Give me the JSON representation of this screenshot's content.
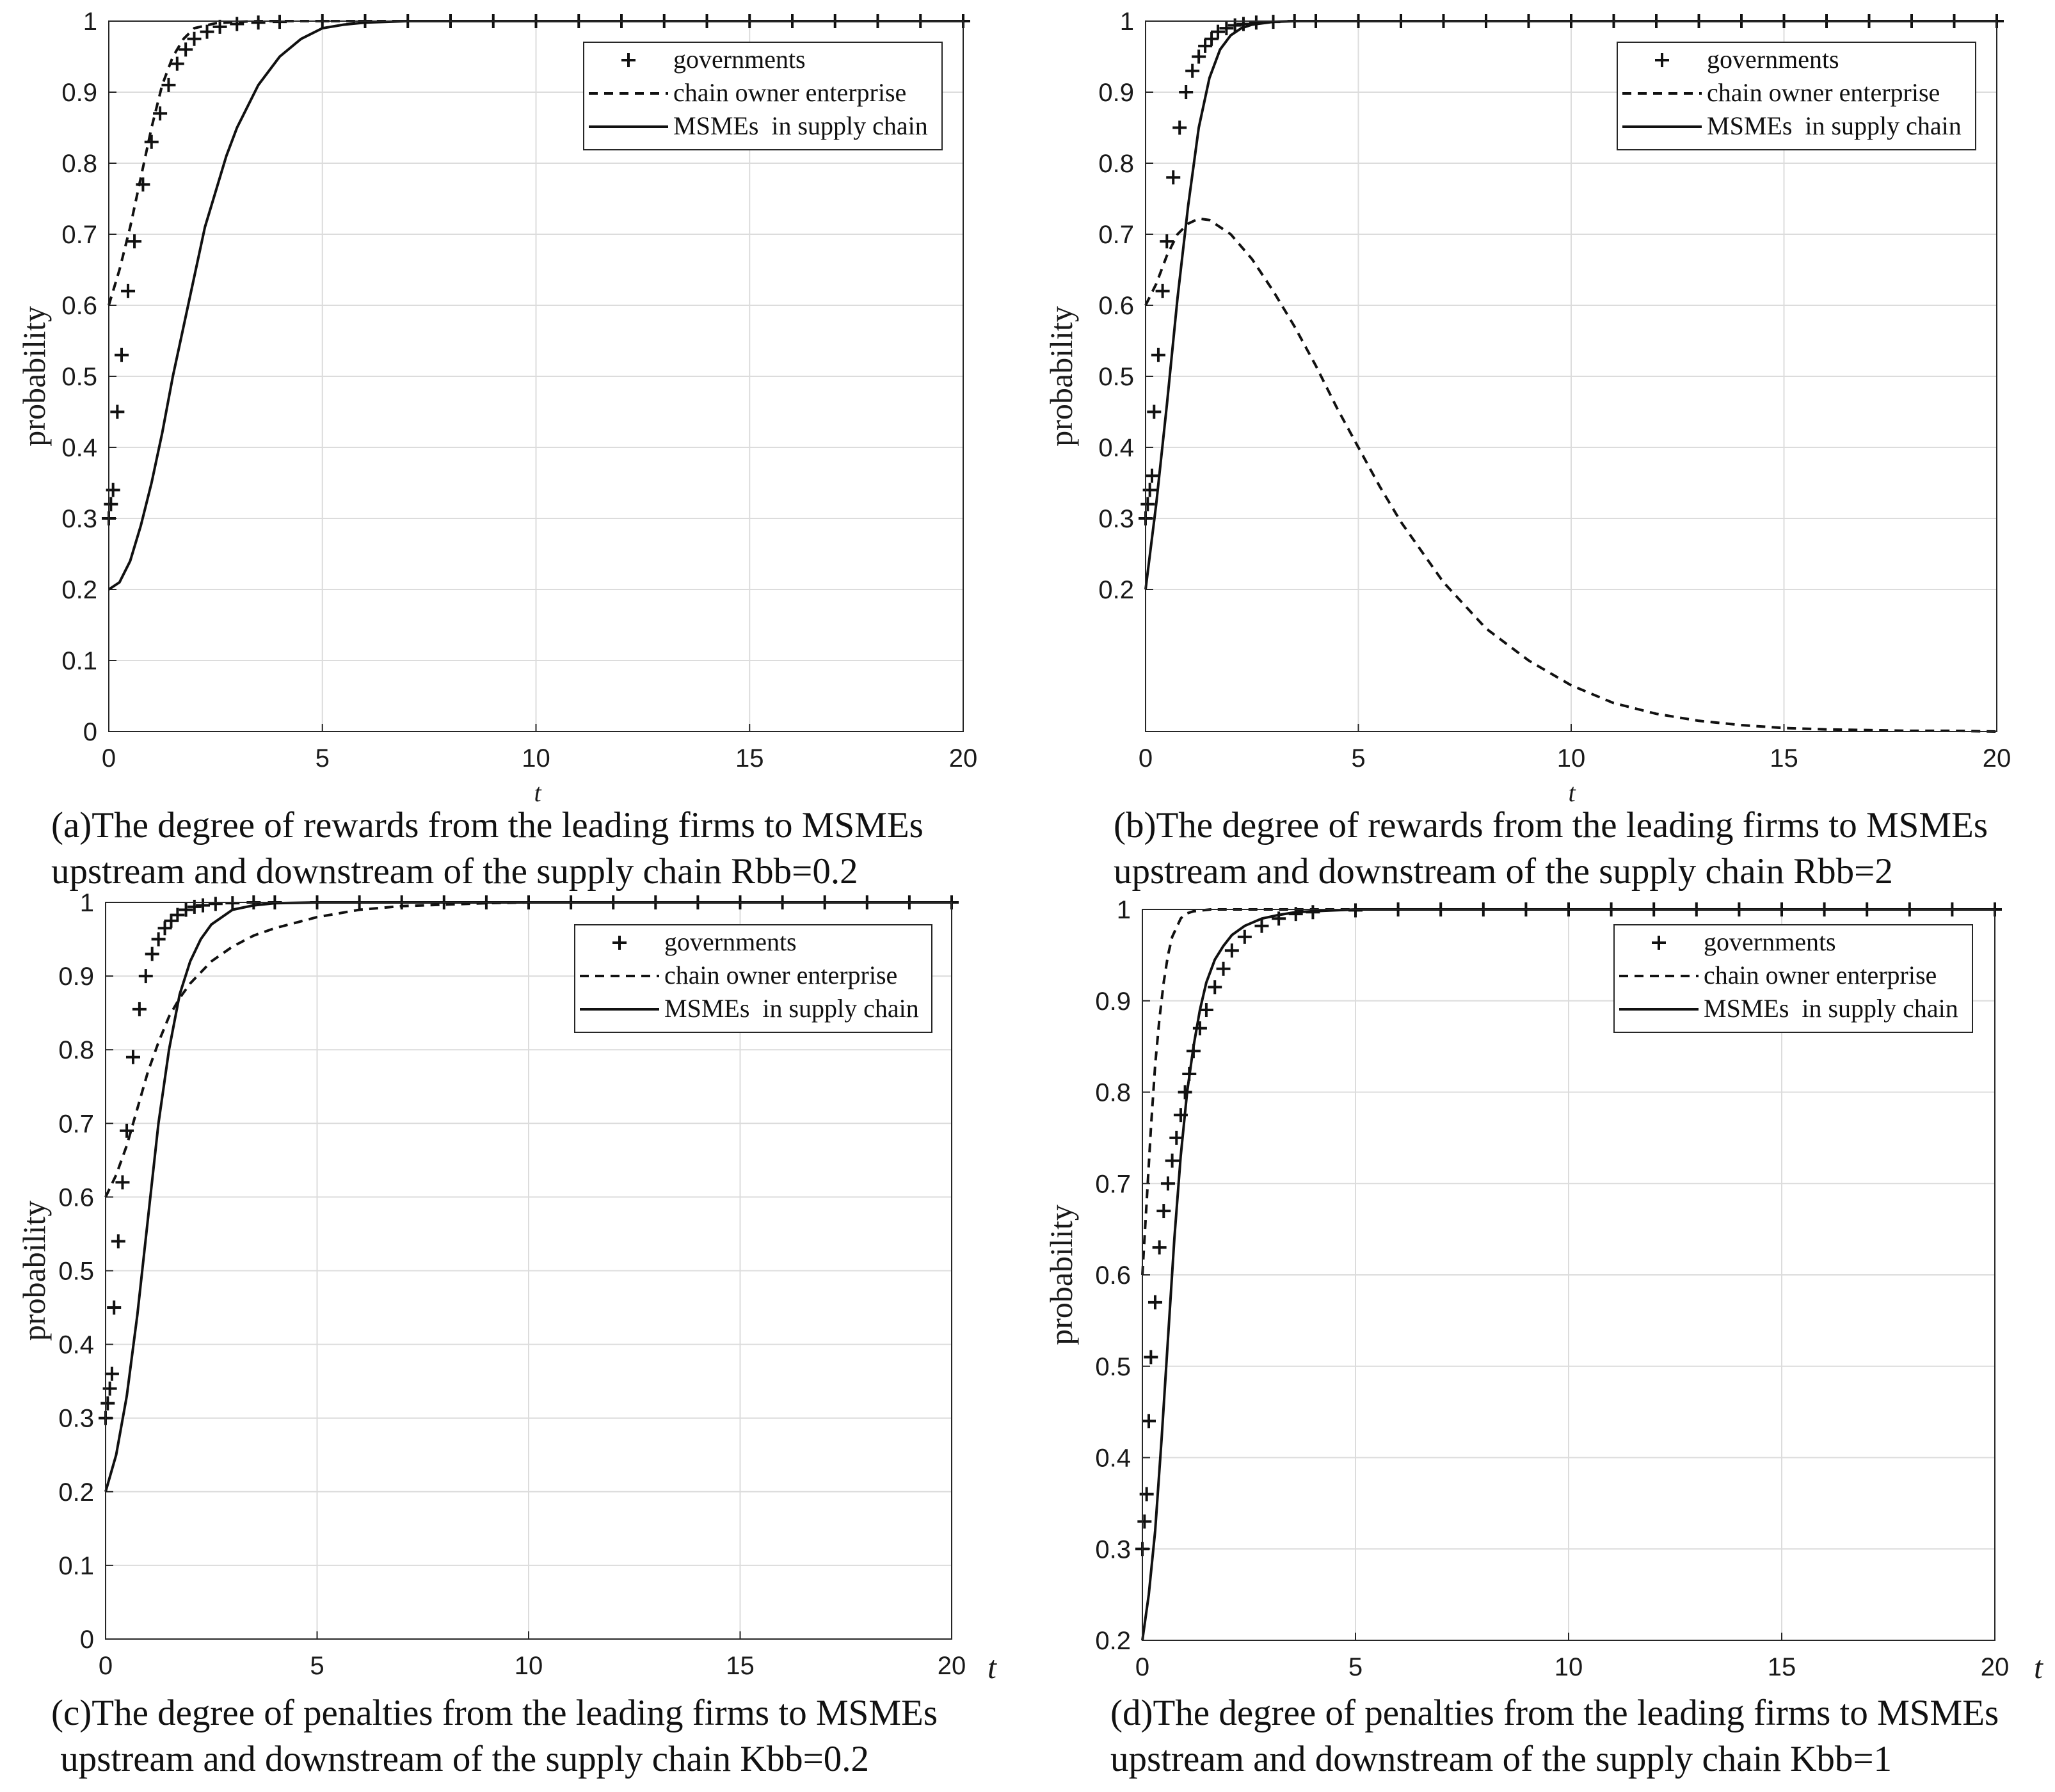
{
  "chart_data": [
    {
      "type": "line",
      "panel": "a",
      "xlabel": "t",
      "ylabel": "probability",
      "xlim": [
        0,
        20
      ],
      "ylim": [
        0,
        1
      ],
      "xticks": [
        "0",
        "5",
        "10",
        "15",
        "20"
      ],
      "yticks": [
        "0",
        "0.1",
        "0.2",
        "0.3",
        "0.4",
        "0.5",
        "0.6",
        "0.7",
        "0.8",
        "0.9",
        "1"
      ],
      "caption_line1": "(a)The degree of rewards from the leading firms to MSMEs",
      "caption_line2": "upstream and downstream of the supply chain Rbb=0.2",
      "legend": [
        "governments",
        "chain owner enterprise",
        "MSMEs  in supply chain"
      ],
      "legend_position": "top-right",
      "series": [
        {
          "name": "governments",
          "style": "plus",
          "x": [
            0,
            0.05,
            0.1,
            0.2,
            0.3,
            0.45,
            0.6,
            0.8,
            1.0,
            1.2,
            1.4,
            1.6,
            1.8,
            2.0,
            2.3,
            2.6,
            3.0,
            3.5,
            4.0,
            5.0,
            6.0,
            7.0,
            8.0,
            9.0,
            10.0,
            11.0,
            12.0,
            13.0,
            14.0,
            15.0,
            16.0,
            17.0,
            18.0,
            19.0,
            20.0
          ],
          "y": [
            0.3,
            0.32,
            0.34,
            0.45,
            0.53,
            0.62,
            0.69,
            0.77,
            0.83,
            0.87,
            0.91,
            0.94,
            0.96,
            0.975,
            0.985,
            0.992,
            0.996,
            0.998,
            0.999,
            1,
            1,
            1,
            1,
            1,
            1,
            1,
            1,
            1,
            1,
            1,
            1,
            1,
            1,
            1,
            1
          ]
        },
        {
          "name": "chain owner enterprise",
          "style": "dashed",
          "x": [
            0,
            0.25,
            0.5,
            0.75,
            1.0,
            1.25,
            1.5,
            1.75,
            2.0,
            2.5,
            3.0,
            3.5,
            4.0,
            5.0,
            6.0,
            8.0,
            10.0,
            12.0,
            14.0,
            16.0,
            18.0,
            20.0
          ],
          "y": [
            0.6,
            0.65,
            0.71,
            0.78,
            0.85,
            0.91,
            0.95,
            0.975,
            0.99,
            0.997,
            0.999,
            1,
            1,
            1,
            1,
            1,
            1,
            1,
            1,
            1,
            1,
            1
          ]
        },
        {
          "name": "MSMEs  in supply chain",
          "style": "solid",
          "x": [
            0,
            0.25,
            0.5,
            0.75,
            1.0,
            1.25,
            1.5,
            1.75,
            2.0,
            2.25,
            2.5,
            2.75,
            3.0,
            3.5,
            4.0,
            4.5,
            5.0,
            5.5,
            6.0,
            6.5,
            7.0,
            8.0,
            10.0,
            12.0,
            14.0,
            16.0,
            18.0,
            20.0
          ],
          "y": [
            0.2,
            0.21,
            0.24,
            0.29,
            0.35,
            0.42,
            0.5,
            0.57,
            0.64,
            0.71,
            0.76,
            0.81,
            0.85,
            0.91,
            0.95,
            0.975,
            0.99,
            0.995,
            0.998,
            0.999,
            1,
            1,
            1,
            1,
            1,
            1,
            1,
            1
          ]
        }
      ]
    },
    {
      "type": "line",
      "panel": "b",
      "xlabel": "t",
      "ylabel": "probability",
      "xlim": [
        0,
        20
      ],
      "ylim": [
        0,
        1
      ],
      "xticks": [
        "0",
        "5",
        "10",
        "15",
        "20"
      ],
      "yticks": [
        "0.2",
        "0.3",
        "0.4",
        "0.5",
        "0.6",
        "0.7",
        "0.8",
        "0.9",
        "1"
      ],
      "caption_line1": "(b)The degree of rewards from the leading firms to MSMEs",
      "caption_line2": "upstream and downstream of the supply chain Rbb=2",
      "legend": [
        "governments",
        "chain owner enterprise",
        "MSMEs  in supply chain"
      ],
      "legend_position": "top-right",
      "series": [
        {
          "name": "governments",
          "style": "plus",
          "x": [
            0,
            0.05,
            0.1,
            0.15,
            0.2,
            0.3,
            0.4,
            0.5,
            0.65,
            0.8,
            0.95,
            1.1,
            1.25,
            1.4,
            1.55,
            1.7,
            1.9,
            2.1,
            2.3,
            2.6,
            3.0,
            3.5,
            4.0,
            5.0,
            6.0,
            7.0,
            8.0,
            9.0,
            10.0,
            11.0,
            12.0,
            13.0,
            14.0,
            15.0,
            16.0,
            17.0,
            18.0,
            19.0,
            20.0
          ],
          "y": [
            0.3,
            0.32,
            0.34,
            0.36,
            0.45,
            0.53,
            0.62,
            0.69,
            0.78,
            0.85,
            0.9,
            0.93,
            0.95,
            0.965,
            0.975,
            0.985,
            0.99,
            0.994,
            0.996,
            0.998,
            0.999,
            1,
            1,
            1,
            1,
            1,
            1,
            1,
            1,
            1,
            1,
            1,
            1,
            1,
            1,
            1,
            1,
            1,
            1
          ]
        },
        {
          "name": "chain owner enterprise",
          "style": "dashed",
          "x": [
            0,
            0.25,
            0.5,
            0.75,
            1.0,
            1.25,
            1.5,
            2.0,
            2.5,
            3.0,
            3.5,
            4.0,
            4.5,
            5.0,
            5.5,
            6.0,
            7.0,
            8.0,
            9.0,
            10.0,
            11.0,
            12.0,
            13.0,
            14.0,
            15.0,
            16.0,
            17.0,
            18.0,
            19.0,
            20.0
          ],
          "y": [
            0.6,
            0.63,
            0.67,
            0.7,
            0.715,
            0.722,
            0.72,
            0.7,
            0.665,
            0.62,
            0.57,
            0.515,
            0.455,
            0.4,
            0.345,
            0.295,
            0.21,
            0.145,
            0.1,
            0.065,
            0.04,
            0.025,
            0.015,
            0.009,
            0.005,
            0.003,
            0.002,
            0.001,
            0.001,
            0
          ]
        },
        {
          "name": "MSMEs  in supply chain",
          "style": "solid",
          "x": [
            0,
            0.25,
            0.5,
            0.75,
            1.0,
            1.25,
            1.5,
            1.75,
            2.0,
            2.25,
            2.5,
            3.0,
            3.5,
            4.0,
            5.0,
            6.0,
            8.0,
            10.0,
            12.0,
            14.0,
            16.0,
            18.0,
            20.0
          ],
          "y": [
            0.2,
            0.32,
            0.46,
            0.61,
            0.74,
            0.85,
            0.92,
            0.96,
            0.98,
            0.99,
            0.995,
            0.999,
            1,
            1,
            1,
            1,
            1,
            1,
            1,
            1,
            1,
            1,
            1
          ]
        }
      ]
    },
    {
      "type": "line",
      "panel": "c",
      "xlabel": "t",
      "ylabel": "probability",
      "xlim": [
        0,
        20
      ],
      "ylim": [
        0,
        1
      ],
      "xticks": [
        "0",
        "5",
        "10",
        "15",
        "20"
      ],
      "yticks": [
        "0",
        "0.1",
        "0.2",
        "0.3",
        "0.4",
        "0.5",
        "0.6",
        "0.7",
        "0.8",
        "0.9",
        "1"
      ],
      "caption_line1": "(c)The degree of penalties from the leading firms to MSMEs",
      "caption_line2": " upstream and downstream of the supply chain Kbb=0.2",
      "legend": [
        "governments",
        "chain owner enterprise",
        "MSMEs  in supply chain"
      ],
      "legend_position": "top-right",
      "series": [
        {
          "name": "governments",
          "style": "plus",
          "x": [
            0,
            0.05,
            0.1,
            0.15,
            0.2,
            0.3,
            0.4,
            0.5,
            0.65,
            0.8,
            0.95,
            1.1,
            1.25,
            1.4,
            1.55,
            1.7,
            1.9,
            2.1,
            2.3,
            2.6,
            3.0,
            3.5,
            4.0,
            5.0,
            6.0,
            7.0,
            8.0,
            9.0,
            10.0,
            11.0,
            12.0,
            13.0,
            14.0,
            15.0,
            16.0,
            17.0,
            18.0,
            19.0,
            20.0
          ],
          "y": [
            0.3,
            0.32,
            0.34,
            0.36,
            0.45,
            0.54,
            0.62,
            0.69,
            0.79,
            0.855,
            0.9,
            0.93,
            0.95,
            0.965,
            0.975,
            0.983,
            0.99,
            0.994,
            0.996,
            0.998,
            0.999,
            1,
            1,
            1,
            1,
            1,
            1,
            1,
            1,
            1,
            1,
            1,
            1,
            1,
            1,
            1,
            1,
            1,
            1
          ]
        },
        {
          "name": "chain owner enterprise",
          "style": "dashed",
          "x": [
            0,
            0.25,
            0.5,
            0.75,
            1.0,
            1.25,
            1.5,
            1.75,
            2.0,
            2.5,
            3.0,
            3.5,
            4.0,
            5.0,
            6.0,
            7.0,
            8.0,
            9.0,
            10.0,
            12.0,
            14.0,
            16.0,
            18.0,
            20.0
          ],
          "y": [
            0.6,
            0.63,
            0.67,
            0.72,
            0.77,
            0.81,
            0.845,
            0.87,
            0.89,
            0.92,
            0.94,
            0.955,
            0.965,
            0.98,
            0.99,
            0.995,
            0.997,
            0.999,
            1,
            1,
            1,
            1,
            1,
            1
          ]
        },
        {
          "name": "MSMEs  in supply chain",
          "style": "solid",
          "x": [
            0,
            0.25,
            0.5,
            0.75,
            1.0,
            1.25,
            1.5,
            1.75,
            2.0,
            2.25,
            2.5,
            3.0,
            3.5,
            4.0,
            5.0,
            6.0,
            8.0,
            10.0,
            12.0,
            14.0,
            16.0,
            18.0,
            20.0
          ],
          "y": [
            0.2,
            0.25,
            0.33,
            0.44,
            0.57,
            0.7,
            0.8,
            0.875,
            0.92,
            0.95,
            0.97,
            0.99,
            0.996,
            0.999,
            1,
            1,
            1,
            1,
            1,
            1,
            1,
            1,
            1
          ]
        }
      ]
    },
    {
      "type": "line",
      "panel": "d",
      "xlabel": "t",
      "ylabel": "probability",
      "xlim": [
        0,
        20
      ],
      "ylim": [
        0.2,
        1
      ],
      "xticks": [
        "0",
        "5",
        "10",
        "15",
        "20"
      ],
      "yticks": [
        "0.2",
        "0.3",
        "0.4",
        "0.5",
        "0.6",
        "0.7",
        "0.8",
        "0.9",
        "1"
      ],
      "caption_line1": "(d)The degree of penalties from the leading firms to MSMEs",
      "caption_line2": "upstream and downstream of the supply chain Kbb=1",
      "legend": [
        "governments",
        "chain owner enterprise",
        "MSMEs  in supply chain"
      ],
      "legend_position": "top-right",
      "series": [
        {
          "name": "governments",
          "style": "plus",
          "x": [
            0,
            0.05,
            0.1,
            0.15,
            0.2,
            0.3,
            0.4,
            0.5,
            0.6,
            0.7,
            0.8,
            0.9,
            1.0,
            1.1,
            1.2,
            1.35,
            1.5,
            1.7,
            1.9,
            2.1,
            2.4,
            2.8,
            3.2,
            3.6,
            4.0,
            5.0,
            6.0,
            7.0,
            8.0,
            9.0,
            10.0,
            11.0,
            12.0,
            13.0,
            14.0,
            15.0,
            16.0,
            17.0,
            18.0,
            19.0,
            20.0
          ],
          "y": [
            0.3,
            0.33,
            0.36,
            0.44,
            0.51,
            0.57,
            0.63,
            0.67,
            0.7,
            0.725,
            0.75,
            0.775,
            0.8,
            0.82,
            0.845,
            0.87,
            0.89,
            0.915,
            0.935,
            0.955,
            0.97,
            0.982,
            0.99,
            0.995,
            0.997,
            0.999,
            1,
            1,
            1,
            1,
            1,
            1,
            1,
            1,
            1,
            1,
            1,
            1,
            1,
            1,
            1
          ]
        },
        {
          "name": "chain owner enterprise",
          "style": "dashed",
          "x": [
            0,
            0.1,
            0.2,
            0.3,
            0.4,
            0.5,
            0.6,
            0.7,
            0.8,
            0.9,
            1.0,
            1.2,
            1.4,
            1.6,
            2.0,
            3.0,
            4.0,
            6.0,
            8.0,
            10.0,
            12.0,
            14.0,
            16.0,
            18.0,
            20.0
          ],
          "y": [
            0.6,
            0.68,
            0.76,
            0.83,
            0.88,
            0.92,
            0.95,
            0.97,
            0.98,
            0.99,
            0.995,
            0.998,
            0.999,
            1,
            1,
            1,
            1,
            1,
            1,
            1,
            1,
            1,
            1,
            1,
            1
          ]
        },
        {
          "name": "MSMEs  in supply chain",
          "style": "solid",
          "x": [
            0,
            0.15,
            0.3,
            0.45,
            0.6,
            0.75,
            0.9,
            1.05,
            1.2,
            1.35,
            1.5,
            1.7,
            1.9,
            2.1,
            2.4,
            2.8,
            3.2,
            3.6,
            4.0,
            5.0,
            6.0,
            8.0,
            10.0,
            12.0,
            14.0,
            16.0,
            18.0,
            20.0
          ],
          "y": [
            0.2,
            0.25,
            0.32,
            0.42,
            0.53,
            0.64,
            0.73,
            0.8,
            0.85,
            0.89,
            0.92,
            0.945,
            0.96,
            0.972,
            0.982,
            0.99,
            0.994,
            0.997,
            0.998,
            1,
            1,
            1,
            1,
            1,
            1,
            1,
            1,
            1
          ]
        }
      ]
    }
  ]
}
